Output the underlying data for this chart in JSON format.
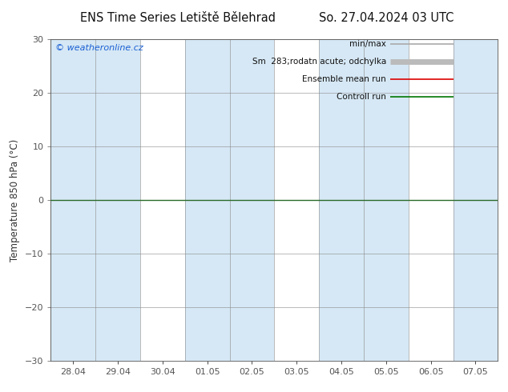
{
  "title_left": "ENS Time Series Letiště Bělehrad",
  "title_right": "So. 27.04.2024 03 UTC",
  "ylabel": "Temperature 850 hPa (°C)",
  "watermark": "© weatheronline.cz",
  "ylim": [
    -30,
    30
  ],
  "yticks": [
    -30,
    -20,
    -10,
    0,
    10,
    20,
    30
  ],
  "xtick_labels": [
    "28.04",
    "29.04",
    "30.04",
    "01.05",
    "02.05",
    "03.05",
    "04.05",
    "05.05",
    "06.05",
    "07.05"
  ],
  "num_cols": 10,
  "shaded_cols": [
    0,
    1,
    3,
    4,
    6,
    7,
    9
  ],
  "shade_color": "#d6e8f5",
  "background_color": "#ffffff",
  "plot_bg_color": "#ffffff",
  "zero_line_color": "#2a6b2a",
  "legend_items": [
    {
      "label": "min/max",
      "color": "#aaaaaa",
      "lw": 1.2
    },
    {
      "label": "Sm  283;rodatn acute; odchylka",
      "color": "#bbbbbb",
      "lw": 5
    },
    {
      "label": "Ensemble mean run",
      "color": "#dd0000",
      "lw": 1.2
    },
    {
      "label": "Controll run",
      "color": "#007700",
      "lw": 1.2
    }
  ],
  "title_fontsize": 10.5,
  "axis_fontsize": 8.5,
  "tick_fontsize": 8,
  "watermark_fontsize": 8,
  "watermark_color": "#1a5fd4",
  "legend_fontsize": 7.5,
  "spine_color": "#555555",
  "tick_color": "#555555"
}
